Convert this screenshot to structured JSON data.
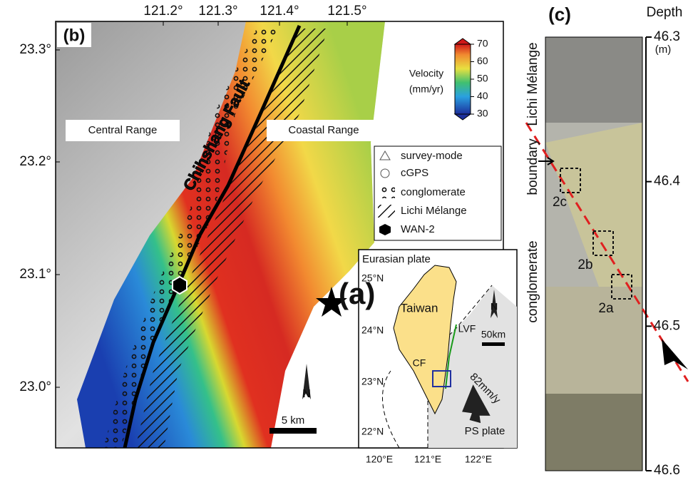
{
  "panel_b": {
    "label": "(b)",
    "lon_ticks": [
      "121.2°",
      "121.3°",
      "121.4°",
      "121.5°"
    ],
    "lat_ticks": [
      "23.3°",
      "23.2°",
      "23.1°",
      "23.0°"
    ],
    "regions": [
      "Central Range",
      "Coastal Range"
    ],
    "fault": "Chihshang Fault",
    "colorbar": {
      "title": "Velocity",
      "unit": "(mm/yr)",
      "ticks": [
        30,
        40,
        50,
        60,
        70
      ]
    },
    "legend": [
      "survey-mode",
      "cGPS",
      "conglomerate",
      "Lichi Mélange",
      "WAN-2"
    ],
    "scale": "5 km",
    "north": "N"
  },
  "panel_a": {
    "label": "(a)",
    "plate_eurasian": "Eurasian plate",
    "island": "Taiwan",
    "lvf": "LVF",
    "cf": "CF",
    "rate": "82mm/y",
    "plate_ps": "PS plate",
    "scale": "50km",
    "north": "N",
    "lat_ticks": [
      "25°N",
      "24°N",
      "23°N",
      "22°N"
    ],
    "lon_ticks": [
      "120°E",
      "121°E",
      "122°E"
    ]
  },
  "panel_c": {
    "label": "(c)",
    "depth_title": "Depth",
    "depth_unit": "(m)",
    "depth_ticks": [
      46.3,
      46.4,
      46.5,
      46.6
    ],
    "units": [
      "Lichi Mélange",
      "boundary",
      "conglomerate"
    ],
    "samples": [
      "2a",
      "2b",
      "2c"
    ]
  }
}
